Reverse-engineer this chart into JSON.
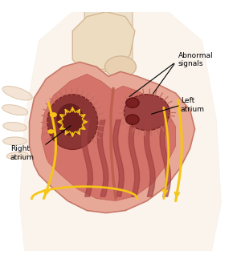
{
  "bg_color": "#ffffff",
  "labels": {
    "abnormal_signals": "Abnormal\nsignals",
    "left_atrium": "Left\natrium",
    "right_atrium": "Right\natrium"
  },
  "heart_outer_color": "#e8a898",
  "heart_inner_color": "#d4736a",
  "atrium_dark": "#8b3535",
  "yellow_signal": "#f5c518",
  "aorta_color": "#f0d5b8",
  "vessel_color": "#e8c8a0",
  "fringe_color": "#c07060",
  "septum_color": "#c06050",
  "muscle_color": "#a04040",
  "annotation_color": "#000000"
}
